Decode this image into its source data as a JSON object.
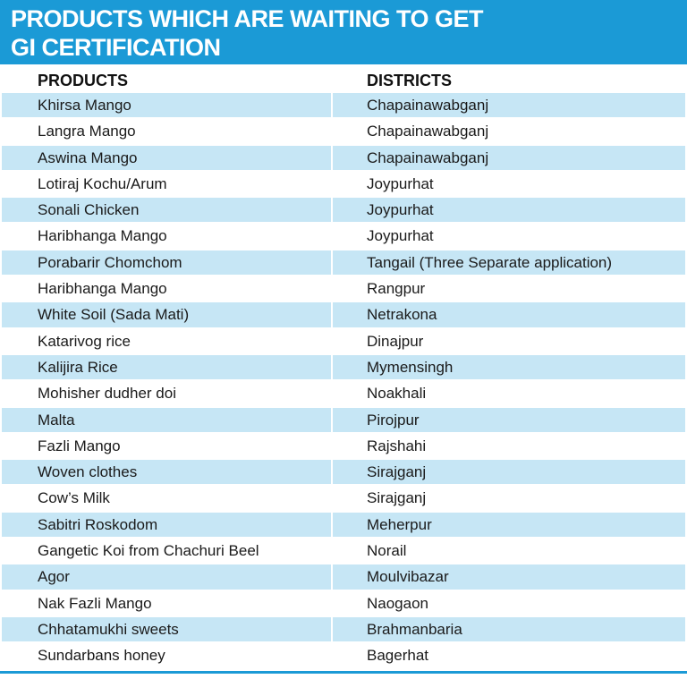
{
  "header": {
    "title_lines": [
      "PRODUCTS WHICH ARE WAITING TO GET",
      "GI CERTIFICATION"
    ]
  },
  "table": {
    "columns": [
      "PRODUCTS",
      "DISTRICTS"
    ],
    "rows": [
      [
        "Khirsa Mango",
        "Chapainawabganj"
      ],
      [
        "Langra Mango",
        "Chapainawabganj"
      ],
      [
        "Aswina Mango",
        "Chapainawabganj"
      ],
      [
        "Lotiraj Kochu/Arum",
        "Joypurhat"
      ],
      [
        "Sonali Chicken",
        "Joypurhat"
      ],
      [
        "Haribhanga Mango",
        "Joypurhat"
      ],
      [
        "Porabarir Chomchom",
        "Tangail (Three Separate application)"
      ],
      [
        "Haribhanga Mango",
        "Rangpur"
      ],
      [
        "White Soil (Sada Mati)",
        "Netrakona"
      ],
      [
        "Katarivog rice",
        "Dinajpur"
      ],
      [
        "Kalijira Rice",
        "Mymensingh"
      ],
      [
        "Mohisher dudher doi",
        "Noakhali"
      ],
      [
        "Malta",
        "Pirojpur"
      ],
      [
        "Fazli Mango",
        "Rajshahi"
      ],
      [
        "Woven clothes",
        "Sirajganj"
      ],
      [
        "Cow’s Milk",
        "Sirajganj"
      ],
      [
        "Sabitri Roskodom",
        "Meherpur"
      ],
      [
        "Gangetic Koi from Chachuri Beel",
        "Norail"
      ],
      [
        "Agor",
        "Moulvibazar"
      ],
      [
        "Nak Fazli Mango",
        "Naogaon"
      ],
      [
        "Chhatamukhi sweets",
        "Brahmanbaria"
      ],
      [
        "Sundarbans honey",
        "Bagerhat"
      ]
    ]
  }
}
